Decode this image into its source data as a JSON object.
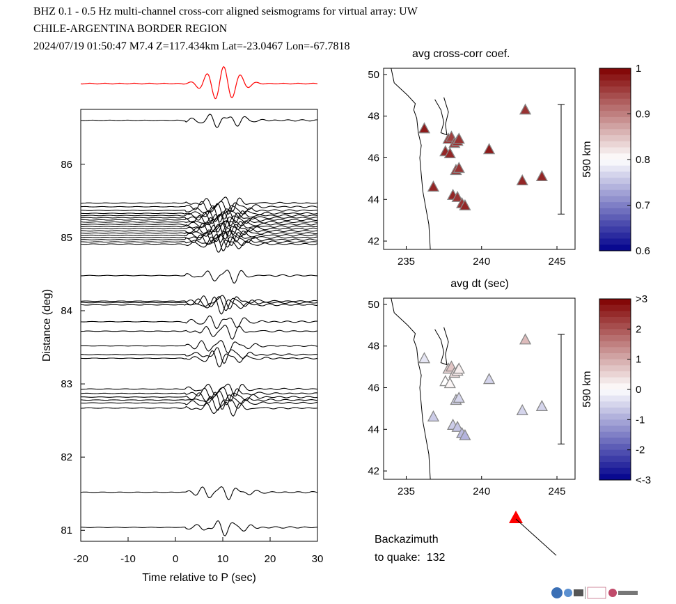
{
  "header": {
    "line1": "BHZ  0.1 - 0.5 Hz  multi-channel cross-corr aligned seismograms for virtual array: UW",
    "line2": "CHILE-ARGENTINA BORDER REGION",
    "line3": "2024/07/19  01:50:47  M7.4  Z=117.434km Lat=-23.0467 Lon=-67.7818"
  },
  "colors": {
    "trace": "#000000",
    "stack": "#ff0000",
    "arrow": "#ff0000"
  },
  "chart_data": [
    {
      "type": "line",
      "id": "record-section",
      "xlabel": "Time relative to P (sec)",
      "ylabel": "Distance (deg)",
      "xlim": [
        -20,
        30
      ],
      "ylim": [
        80.85,
        86.75
      ],
      "xticks": [
        "-20",
        "-10",
        "0",
        "10",
        "20",
        "30"
      ],
      "yticks": [
        "81",
        "82",
        "83",
        "84",
        "85",
        "86"
      ],
      "stack_trace": "red beam/stack trace above the panel",
      "trace_distances": [
        86.6,
        85.47,
        85.42,
        85.37,
        85.33,
        85.3,
        85.27,
        85.24,
        85.21,
        85.18,
        85.15,
        85.12,
        85.09,
        85.06,
        85.03,
        85.0,
        84.97,
        84.94,
        84.91,
        84.48,
        84.13,
        84.11,
        84.08,
        83.85,
        83.72,
        83.52,
        83.4,
        83.35,
        82.93,
        82.87,
        82.82,
        82.78,
        82.74,
        82.67,
        81.52,
        81.04
      ]
    },
    {
      "type": "scatter",
      "id": "map-cc",
      "title": "avg cross-corr coef.",
      "xlabel": "avg dt (sec)",
      "xlim": [
        233.5,
        246.2
      ],
      "ylim": [
        41.6,
        50.3
      ],
      "xticks": [
        "235",
        "240",
        "245"
      ],
      "yticks": [
        "42",
        "44",
        "46",
        "48",
        "50"
      ],
      "scale_bar": "590 km",
      "colorbar": {
        "min": 0.6,
        "max": 1.0,
        "ticks": [
          "1",
          "0.9",
          "0.8",
          "0.7",
          "0.6"
        ]
      },
      "stations": [
        {
          "x": 236.2,
          "y": 47.4,
          "v": 0.98
        },
        {
          "x": 236.8,
          "y": 44.6,
          "v": 0.97
        },
        {
          "x": 237.6,
          "y": 46.3,
          "v": 0.97
        },
        {
          "x": 237.8,
          "y": 46.9,
          "v": 0.96
        },
        {
          "x": 237.9,
          "y": 46.2,
          "v": 0.97
        },
        {
          "x": 238.0,
          "y": 47.0,
          "v": 0.95
        },
        {
          "x": 238.2,
          "y": 46.7,
          "v": 0.95
        },
        {
          "x": 238.4,
          "y": 46.8,
          "v": 0.96
        },
        {
          "x": 238.5,
          "y": 46.9,
          "v": 0.96
        },
        {
          "x": 238.3,
          "y": 45.4,
          "v": 0.96
        },
        {
          "x": 238.5,
          "y": 45.5,
          "v": 0.96
        },
        {
          "x": 238.1,
          "y": 44.2,
          "v": 0.97
        },
        {
          "x": 238.4,
          "y": 44.1,
          "v": 0.96
        },
        {
          "x": 238.7,
          "y": 43.8,
          "v": 0.96
        },
        {
          "x": 238.9,
          "y": 43.7,
          "v": 0.97
        },
        {
          "x": 240.5,
          "y": 46.4,
          "v": 0.98
        },
        {
          "x": 242.7,
          "y": 44.9,
          "v": 0.97
        },
        {
          "x": 242.9,
          "y": 48.3,
          "v": 0.96
        },
        {
          "x": 244.0,
          "y": 45.1,
          "v": 0.97
        }
      ]
    },
    {
      "type": "scatter",
      "id": "map-dt",
      "xlim": [
        233.5,
        246.2
      ],
      "ylim": [
        41.6,
        50.3
      ],
      "xticks": [
        "235",
        "240",
        "245"
      ],
      "yticks": [
        "42",
        "44",
        "46",
        "48",
        "50"
      ],
      "scale_bar": "590 km",
      "colorbar": {
        "min": -3,
        "max": 3,
        "ticks": [
          ">3",
          "2",
          "1",
          "0",
          "-1",
          "-2",
          "<-3"
        ]
      },
      "stations": [
        {
          "x": 236.2,
          "y": 47.4,
          "v": -0.3
        },
        {
          "x": 236.8,
          "y": 44.6,
          "v": -0.6
        },
        {
          "x": 237.6,
          "y": 46.3,
          "v": 0.0
        },
        {
          "x": 237.8,
          "y": 46.9,
          "v": 0.5
        },
        {
          "x": 237.9,
          "y": 46.2,
          "v": 0.1
        },
        {
          "x": 238.0,
          "y": 47.0,
          "v": 0.7
        },
        {
          "x": 238.2,
          "y": 46.7,
          "v": 0.4
        },
        {
          "x": 238.4,
          "y": 46.8,
          "v": 0.3
        },
        {
          "x": 238.5,
          "y": 46.9,
          "v": 0.2
        },
        {
          "x": 238.3,
          "y": 45.4,
          "v": -0.5
        },
        {
          "x": 238.5,
          "y": 45.5,
          "v": -0.5
        },
        {
          "x": 238.1,
          "y": 44.2,
          "v": -0.6
        },
        {
          "x": 238.4,
          "y": 44.1,
          "v": -0.7
        },
        {
          "x": 238.7,
          "y": 43.8,
          "v": -0.8
        },
        {
          "x": 238.9,
          "y": 43.7,
          "v": -0.9
        },
        {
          "x": 240.5,
          "y": 46.4,
          "v": -0.5
        },
        {
          "x": 242.7,
          "y": 44.9,
          "v": -0.5
        },
        {
          "x": 242.9,
          "y": 48.3,
          "v": 0.8
        },
        {
          "x": 244.0,
          "y": 45.1,
          "v": -0.5
        }
      ]
    }
  ],
  "backazimuth": {
    "line1": "Backazimuth",
    "line2": "to quake:  132",
    "degrees": 132
  }
}
